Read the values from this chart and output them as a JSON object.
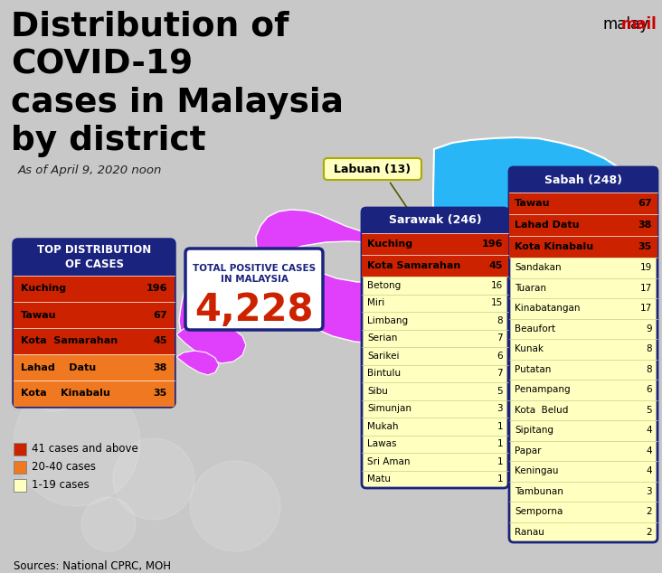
{
  "title_lines": [
    "Distribution of",
    "COVID-19",
    "cases in Malaysia",
    "by district"
  ],
  "subtitle": "As of April 9, 2020 noon",
  "brand_malay": "malay",
  "brand_mail": "mail",
  "total_label": "TOTAL POSITIVE CASES\nIN MALAYSIA",
  "total_value": "4,228",
  "top_dist_title": "TOP DISTRIBUTION\nOF CASES",
  "top_cases": [
    {
      "name": "Kuching",
      "value": "196",
      "bg": "#cc2200"
    },
    {
      "name": "Tawau",
      "value": "67",
      "bg": "#cc2200"
    },
    {
      "name": "Kota  Samarahan",
      "value": "45",
      "bg": "#cc2200"
    },
    {
      "name": "Lahad    Datu",
      "value": "38",
      "bg": "#f07820"
    },
    {
      "name": "Kota    Kinabalu",
      "value": "35",
      "bg": "#f07820"
    }
  ],
  "sarawak_title": "Sarawak (246)",
  "sarawak_red": [
    {
      "name": "Kuching",
      "value": "196"
    },
    {
      "name": "Kota Samarahan",
      "value": "45"
    }
  ],
  "sarawak_yellow": [
    {
      "name": "Betong",
      "value": "16"
    },
    {
      "name": "Miri",
      "value": "15"
    },
    {
      "name": "Limbang",
      "value": "8"
    },
    {
      "name": "Serian",
      "value": "7"
    },
    {
      "name": "Sarikei",
      "value": "6"
    },
    {
      "name": "Bintulu",
      "value": "7"
    },
    {
      "name": "Sibu",
      "value": "5"
    },
    {
      "name": "Simunjan",
      "value": "3"
    },
    {
      "name": "Mukah",
      "value": "1"
    },
    {
      "name": "Lawas",
      "value": "1"
    },
    {
      "name": "Sri Aman",
      "value": "1"
    },
    {
      "name": "Matu",
      "value": "1"
    }
  ],
  "sabah_title": "Sabah (248)",
  "sabah_red": [
    {
      "name": "Tawau",
      "value": "67"
    },
    {
      "name": "Lahad Datu",
      "value": "38"
    },
    {
      "name": "Kota Kinabalu",
      "value": "35"
    }
  ],
  "sabah_yellow": [
    {
      "name": "Sandakan",
      "value": "19"
    },
    {
      "name": "Tuaran",
      "value": "17"
    },
    {
      "name": "Kinabatangan",
      "value": "17"
    },
    {
      "name": "Beaufort",
      "value": "9"
    },
    {
      "name": "Kunak",
      "value": "8"
    },
    {
      "name": "Putatan",
      "value": "8"
    },
    {
      "name": "Penampang",
      "value": "6"
    },
    {
      "name": "Kota  Belud",
      "value": "5"
    },
    {
      "name": "Sipitang",
      "value": "4"
    },
    {
      "name": "Papar",
      "value": "4"
    },
    {
      "name": "Keningau",
      "value": "4"
    },
    {
      "name": "Tambunan",
      "value": "3"
    },
    {
      "name": "Semporna",
      "value": "2"
    },
    {
      "name": "Ranau",
      "value": "2"
    }
  ],
  "labuan_label": "Labuan (13)",
  "legend_items": [
    {
      "label": "41 cases and above",
      "color": "#cc2200"
    },
    {
      "label": "20-40 cases",
      "color": "#f07820"
    },
    {
      "label": "1-19 cases",
      "color": "#ffffc0"
    }
  ],
  "source": "Sources: National CPRC, MOH",
  "bg_color": "#c8c8c8",
  "map_borneo_color": "#e040fb",
  "map_sabah_color": "#29b6f6",
  "navy": "#1a237e",
  "red_color": "#cc2200",
  "orange_color": "#f07820",
  "yellow_color": "#ffffc0",
  "white": "#ffffff"
}
